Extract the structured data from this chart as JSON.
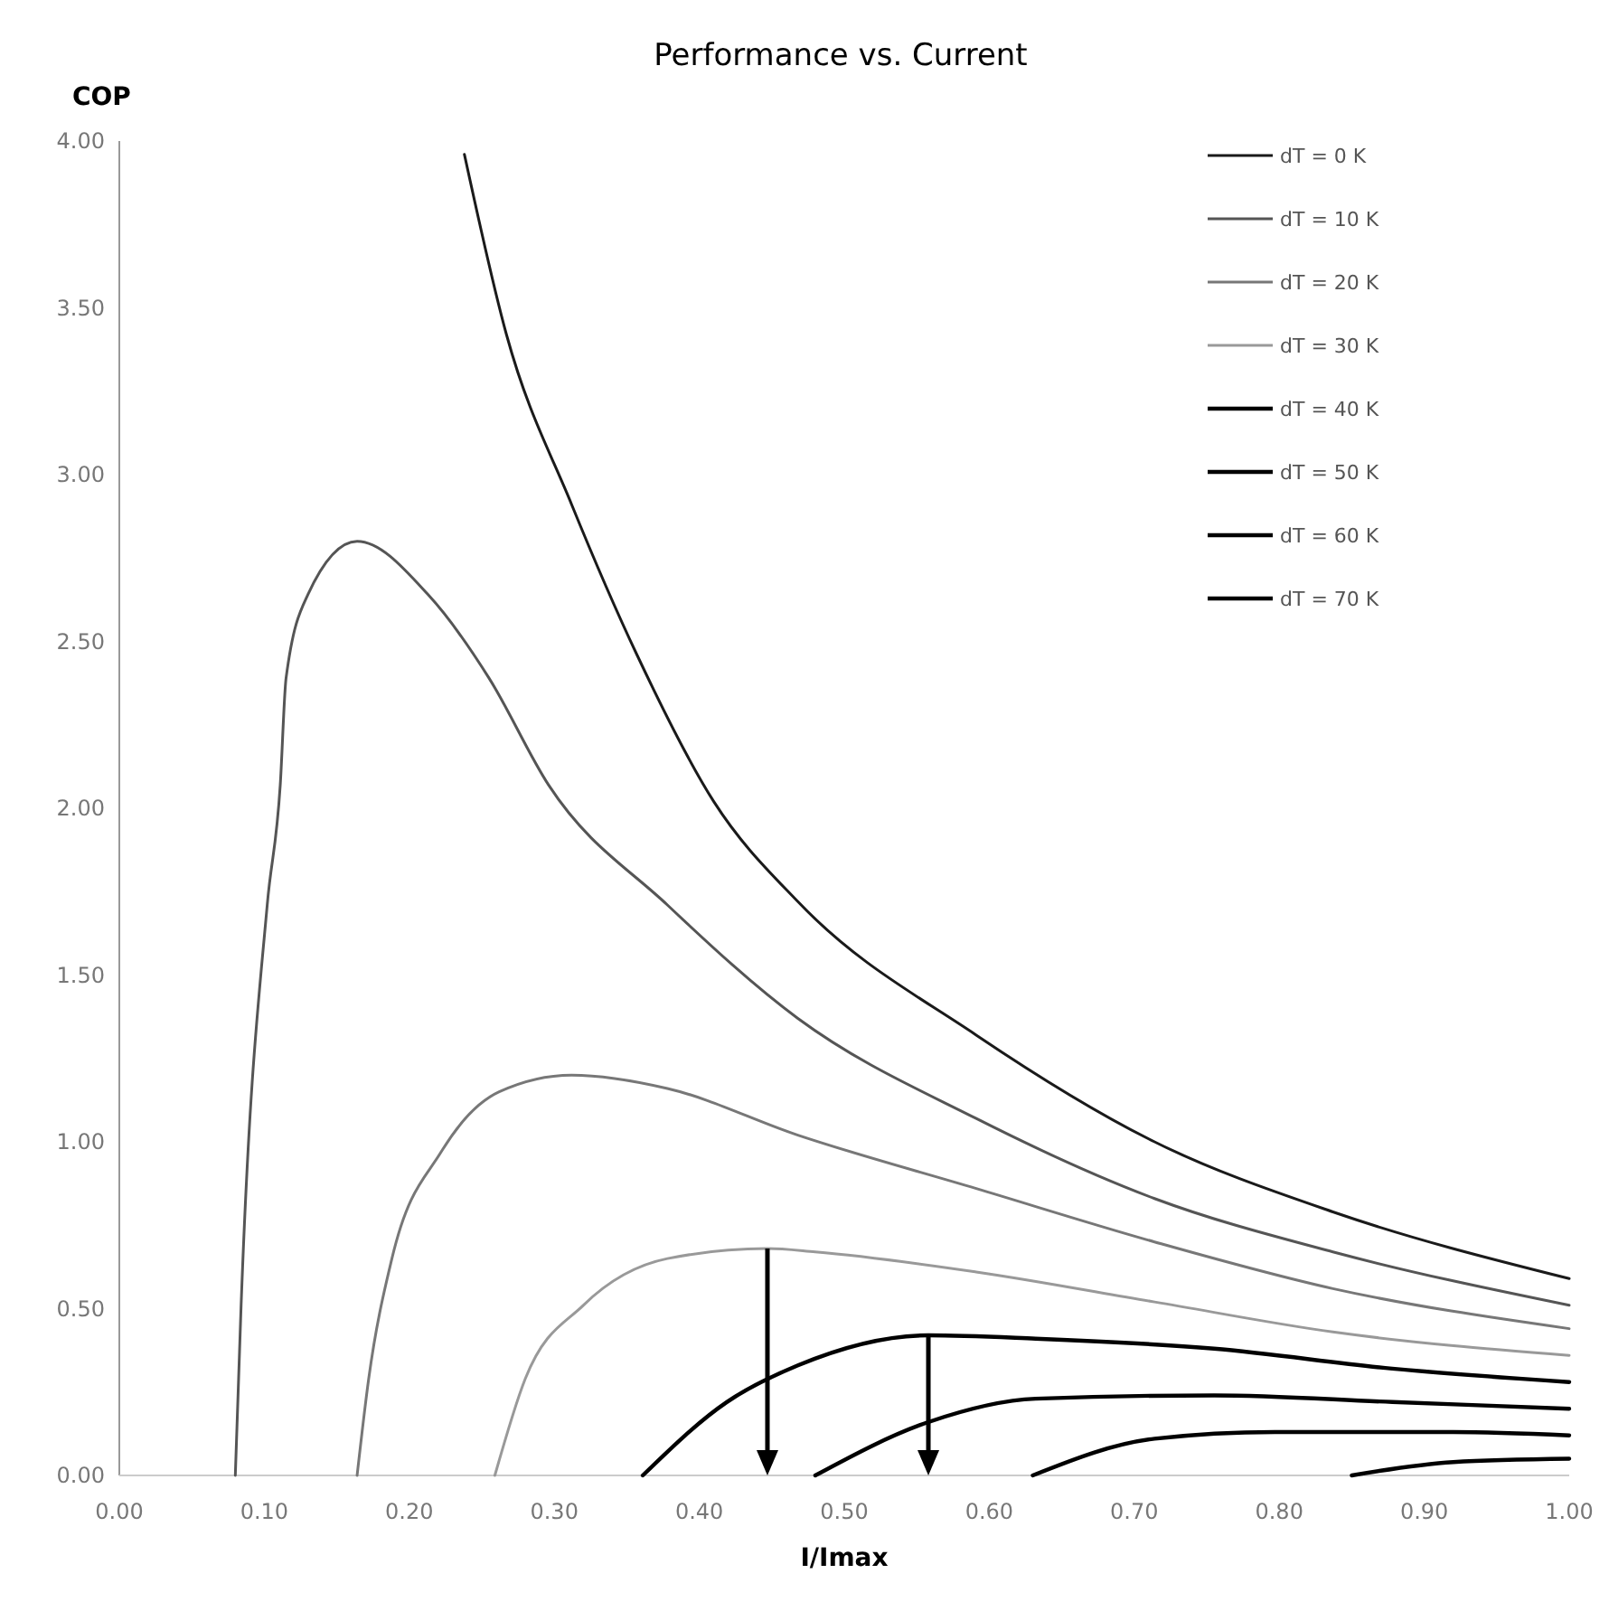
{
  "chart_data": {
    "type": "line",
    "title": "Performance vs. Current",
    "xlabel": "I/Imax",
    "ylabel": "COP",
    "xlim": [
      0,
      1
    ],
    "ylim": [
      0,
      4
    ],
    "xticks": [
      {
        "value": 0,
        "label": "0.00"
      },
      {
        "value": 0.1,
        "label": "0.10"
      },
      {
        "value": 0.2,
        "label": "0.20"
      },
      {
        "value": 0.3,
        "label": "0.30"
      },
      {
        "value": 0.4,
        "label": "0.40"
      },
      {
        "value": 0.5,
        "label": "0.50"
      },
      {
        "value": 0.6,
        "label": "0.60"
      },
      {
        "value": 0.7,
        "label": "0.70"
      },
      {
        "value": 0.8,
        "label": "0.80"
      },
      {
        "value": 0.9,
        "label": "0.90"
      },
      {
        "value": 1,
        "label": "1.00"
      }
    ],
    "yticks": [
      {
        "value": 0,
        "label": "0.00"
      },
      {
        "value": 0.5,
        "label": "0.50"
      },
      {
        "value": 1,
        "label": "1.00"
      },
      {
        "value": 1.5,
        "label": "1.50"
      },
      {
        "value": 2,
        "label": "2.00"
      },
      {
        "value": 2.5,
        "label": "2.50"
      },
      {
        "value": 3,
        "label": "3.00"
      },
      {
        "value": 3.5,
        "label": "3.50"
      },
      {
        "value": 4,
        "label": "4.00"
      }
    ],
    "grid": false,
    "legend": "top right",
    "marker": "none",
    "line_style": "solid",
    "series": [
      {
        "name": "dT = 0 K",
        "color": "#1a1a1a",
        "x": [
          0.238,
          0.267,
          0.312,
          0.357,
          0.41,
          0.468,
          0.591,
          0.714,
          0.837,
          1.0
        ],
        "values": [
          3.96,
          3.42,
          2.91,
          2.46,
          2.02,
          1.72,
          1.32,
          1.0,
          0.79,
          0.59
        ]
      },
      {
        "name": "dT = 10 K",
        "color": "#555555",
        "x": [
          0.08,
          0.084,
          0.102,
          0.111,
          0.115,
          0.13,
          0.164,
          0.213,
          0.255,
          0.296,
          0.378,
          0.468,
          0.591,
          0.714,
          0.837,
          1.0
        ],
        "values": [
          0,
          0.51,
          1.71,
          2.07,
          2.39,
          2.64,
          2.8,
          2.64,
          2.39,
          2.07,
          1.71,
          1.37,
          1.07,
          0.83,
          0.67,
          0.51
        ]
      },
      {
        "name": "dT = 20 K",
        "color": "#777777",
        "x": [
          0.164,
          0.172,
          0.188,
          0.222,
          0.262,
          0.312,
          0.378,
          0.468,
          0.591,
          0.714,
          0.837,
          1.0
        ],
        "values": [
          0,
          0.29,
          0.65,
          0.97,
          1.15,
          1.2,
          1.16,
          1.02,
          0.86,
          0.7,
          0.56,
          0.44
        ]
      },
      {
        "name": "dT = 30 K",
        "color": "#999999",
        "x": [
          0.259,
          0.28,
          0.32,
          0.378,
          0.447,
          0.48,
          0.591,
          0.714,
          0.837,
          1.0
        ],
        "values": [
          0,
          0.29,
          0.51,
          0.65,
          0.68,
          0.67,
          0.61,
          0.52,
          0.43,
          0.36
        ]
      },
      {
        "name": "dT = 40 K",
        "color": "#000000",
        "x": [
          0.361,
          0.419,
          0.468,
          0.558,
          0.632,
          0.755,
          0.878,
          1.0
        ],
        "values": [
          0,
          0.22,
          0.33,
          0.42,
          0.41,
          0.38,
          0.32,
          0.28
        ]
      },
      {
        "name": "dT = 50 K",
        "color": "#000000",
        "x": [
          0.48,
          0.558,
          0.632,
          0.755,
          0.878,
          1.0
        ],
        "values": [
          0,
          0.16,
          0.23,
          0.24,
          0.22,
          0.2
        ]
      },
      {
        "name": "dT = 60 K",
        "color": "#000000",
        "x": [
          0.63,
          0.714,
          0.797,
          0.92,
          1.0
        ],
        "values": [
          0,
          0.11,
          0.13,
          0.13,
          0.12
        ]
      },
      {
        "name": "dT = 70 K",
        "color": "#000000",
        "x": [
          0.85,
          0.92,
          1.0
        ],
        "values": [
          0,
          0.04,
          0.05
        ]
      }
    ]
  }
}
